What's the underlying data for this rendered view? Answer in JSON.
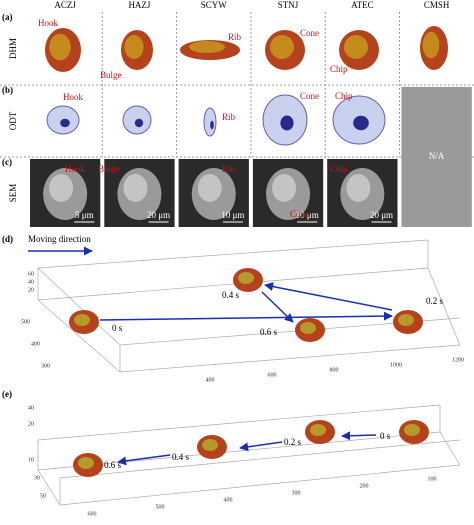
{
  "columns": [
    "ACZJ",
    "HAZJ",
    "SCYW",
    "STNJ",
    "ATEC",
    "CMSH"
  ],
  "rows": [
    {
      "letter": "(a)",
      "name": "DHM"
    },
    {
      "letter": "(b)",
      "name": "ODT"
    },
    {
      "letter": "(c)",
      "name": "SEM"
    }
  ],
  "dhm_labels": [
    "Hook",
    "Bulge",
    "Rib",
    "Cone",
    "Chip"
  ],
  "odt_labels": [
    "Hook",
    "Rib",
    "Cone",
    "Chip"
  ],
  "sem_labels": [
    "Hook",
    "Bulge",
    "Rib",
    "Cone",
    "Chip"
  ],
  "sem_scale_bars": [
    "5 μm",
    "20 μm",
    "10 μm",
    "10 μm",
    "20 μm"
  ],
  "na": "N/A",
  "panel_d": {
    "letter": "(d)",
    "legend": "Moving direction",
    "times": [
      "0 s",
      "0.4 s",
      "0.2 s",
      "0.6 s"
    ],
    "z_ticks": [
      20,
      40,
      60
    ],
    "y_ticks": [
      500,
      400,
      300
    ],
    "x_ticks": [
      400,
      600,
      800,
      1000,
      1200
    ]
  },
  "panel_e": {
    "letter": "(e)",
    "times": [
      "0 s",
      "0.2 s",
      "0.4 s",
      "0.6 s"
    ],
    "z_ticks": [
      40,
      20
    ],
    "y_ticks": [
      10,
      30,
      50
    ],
    "x_ticks": [
      600,
      500,
      400,
      300,
      200,
      100
    ]
  }
}
